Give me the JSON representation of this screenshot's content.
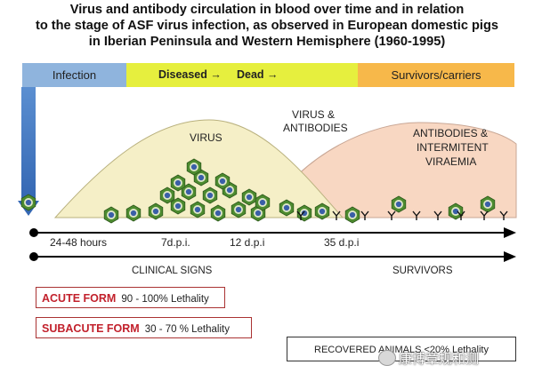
{
  "title": {
    "line1": "Virus and antibody circulation in blood over time and in relation",
    "line2": "to the stage of ASF virus infection, as observed in European domestic pigs",
    "line3": "in Iberian Peninsula and Western Hemisphere (1960-1995)"
  },
  "stages": {
    "infection": "Infection",
    "diseased": "Diseased →",
    "dead": "Dead →",
    "survivors": "Survivors/carriers"
  },
  "curves": {
    "virus": "VIRUS",
    "virus_antibodies_1": "VIRUS &",
    "virus_antibodies_2": "ANTIBODIES",
    "ab_1": "ANTIBODIES &",
    "ab_2": "INTERMITENT",
    "ab_3": "VIRAEMIA"
  },
  "timeline": {
    "t1": "24-48 hours",
    "t2": "7d.p.i.",
    "t3": "12 d.p.i",
    "t4": "35 d.p.i"
  },
  "phases": {
    "clinical": "CLINICAL SIGNS",
    "survivors": "SURVIVORS"
  },
  "forms": {
    "acute_name": "ACUTE FORM",
    "acute_rate": "90 - 100% Lethality",
    "subacute_name": "SUBACUTE FORM",
    "subacute_rate": "30 - 70 % Lethality",
    "recovered": "RECOVERED ANIMALS  <20% Lethality"
  },
  "watermark": "康博章规和测",
  "colors": {
    "infection": "#8fb4dd",
    "diseased": "#e6ef3e",
    "survivors": "#f7b84a",
    "virus_curve": "#f5efc7",
    "ab_curve": "#f8d7c2",
    "virus_hex": "#4d8b2f",
    "virus_core": "#3a5fa8"
  }
}
